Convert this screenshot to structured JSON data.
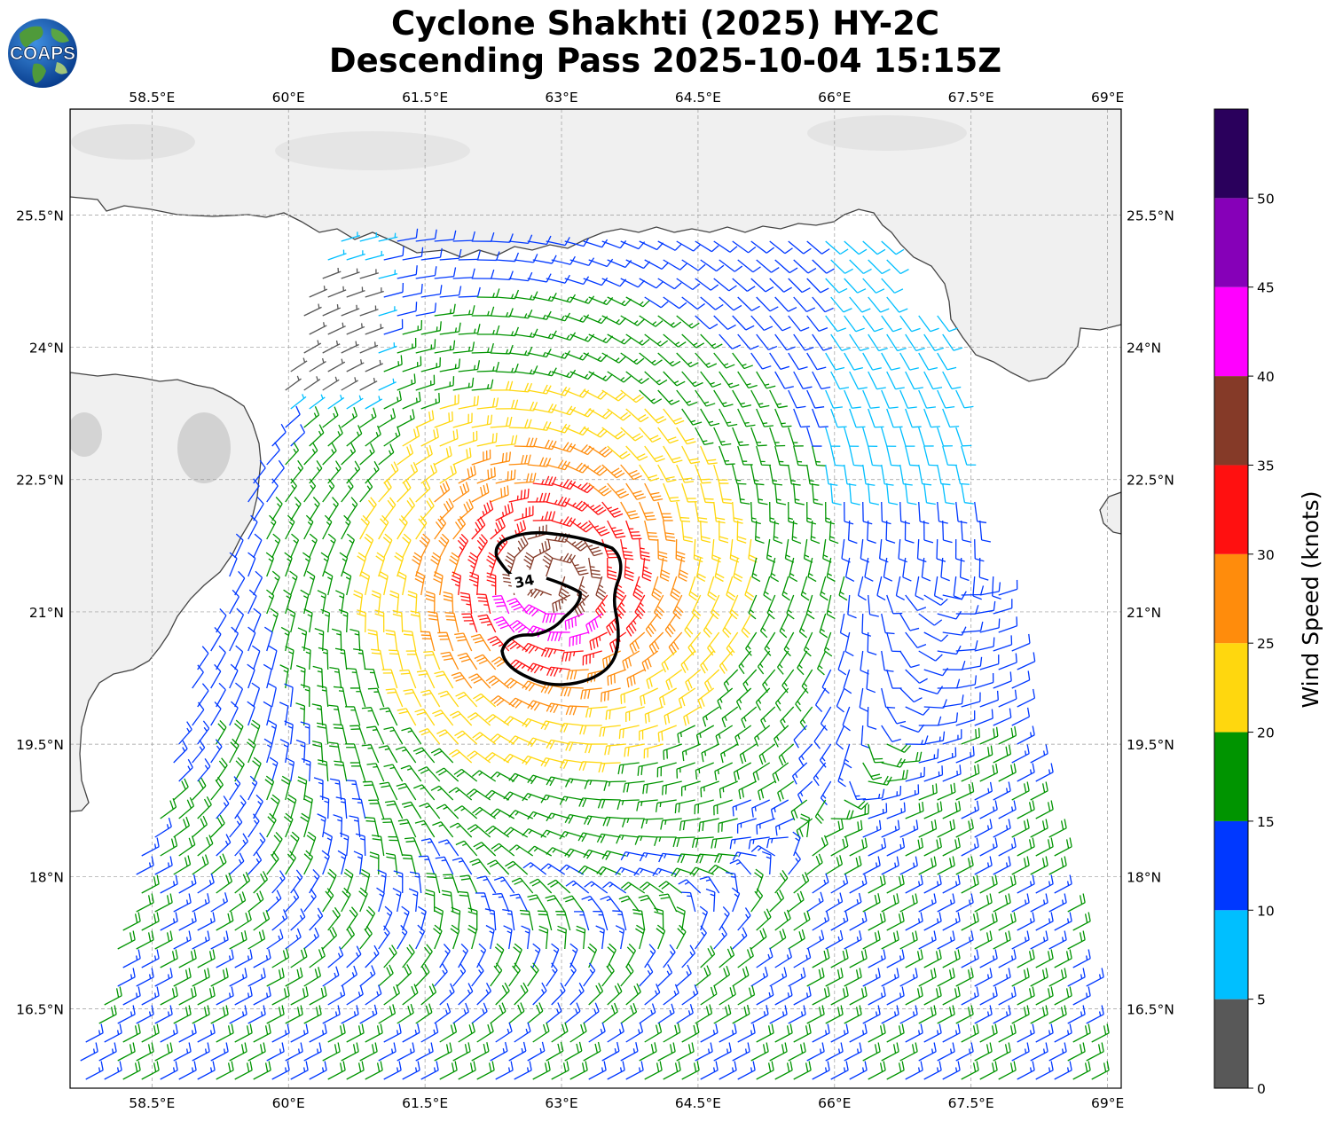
{
  "title": {
    "line1": "Cyclone Shakhti (2025) HY-2C",
    "line2": "Descending Pass 2025-10-04 15:15Z"
  },
  "logo": {
    "text": "COAPS"
  },
  "map": {
    "lon_range": [
      57.6,
      69.15
    ],
    "lat_range": [
      15.6,
      26.7
    ],
    "lon_ticks": [
      "58.5°E",
      "60°E",
      "61.5°E",
      "63°E",
      "64.5°E",
      "66°E",
      "67.5°E",
      "69°E"
    ],
    "lon_values": [
      58.5,
      60,
      61.5,
      63,
      64.5,
      66,
      67.5,
      69
    ],
    "lat_ticks": [
      "25.5°N",
      "24°N",
      "22.5°N",
      "21°N",
      "19.5°N",
      "18°N",
      "16.5°N"
    ],
    "lat_values": [
      25.5,
      24,
      22.5,
      21,
      19.5,
      18,
      16.5
    ],
    "gridlines": true,
    "contour_label": "34",
    "storm_center": {
      "lon": 62.9,
      "lat": 21.4
    },
    "land_color": "#f1f1f1",
    "coast_color": "#444444"
  },
  "colorbar": {
    "label": "Wind Speed (knots)",
    "tick_labels": [
      "0",
      "5",
      "10",
      "15",
      "20",
      "25",
      "30",
      "35",
      "40",
      "45",
      "50"
    ],
    "bins": [
      {
        "from": 0,
        "to": 5,
        "color": "#585858"
      },
      {
        "from": 5,
        "to": 10,
        "color": "#00bfff"
      },
      {
        "from": 10,
        "to": 15,
        "color": "#0038ff"
      },
      {
        "from": 15,
        "to": 20,
        "color": "#009400"
      },
      {
        "from": 20,
        "to": 25,
        "color": "#ffd70e"
      },
      {
        "from": 25,
        "to": 30,
        "color": "#ff8c0c"
      },
      {
        "from": 30,
        "to": 35,
        "color": "#ff1010"
      },
      {
        "from": 35,
        "to": 40,
        "color": "#853a28"
      },
      {
        "from": 40,
        "to": 45,
        "color": "#ff00ff"
      },
      {
        "from": 45,
        "to": 50,
        "color": "#8600b8"
      },
      {
        "from": 50,
        "to": 55,
        "color": "#2a005c"
      }
    ]
  }
}
